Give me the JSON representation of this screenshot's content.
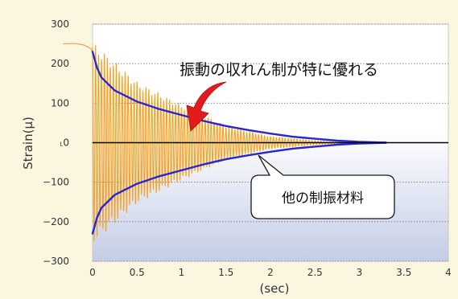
{
  "chart_data": {
    "type": "line",
    "title": "",
    "xlabel": "(sec)",
    "ylabel": "Strain(μ)",
    "xlim": [
      0,
      4
    ],
    "ylim": [
      -300,
      300
    ],
    "x_ticks": [
      "0",
      "0.5",
      "1",
      "1.5",
      "2",
      "2.5",
      "3",
      "3.5",
      "4"
    ],
    "y_ticks": [
      "300",
      "200",
      "100",
      "0",
      "−100",
      "−200",
      "−300"
    ],
    "y_zero_label": "˪0",
    "grid": true,
    "series": [
      {
        "color": "#f5a01f",
        "description": "orange damped vibration signal",
        "pre_trigger": {
          "x": [
            -0.33,
            -0.2,
            -0.1,
            -0.02,
            0.0
          ],
          "y": [
            250,
            249,
            245,
            238,
            230
          ]
        },
        "amplitude": {
          "x": [
            0,
            0.5,
            1,
            1.5,
            2,
            2.5,
            2.85
          ],
          "y": [
            240,
            145,
            90,
            40,
            15,
            5,
            0
          ]
        },
        "frequency_hz": 30
      },
      {
        "color": "#2626d2",
        "description": "blue upper envelope (other damping material)",
        "x": [
          0,
          0.05,
          0.1,
          0.25,
          0.5,
          0.75,
          1.0,
          1.25,
          1.5,
          1.75,
          2.0,
          2.25,
          2.5,
          2.75,
          3.0,
          3.3
        ],
        "y": [
          230,
          190,
          165,
          132,
          104,
          85,
          70,
          55,
          42,
          32,
          23,
          15,
          10,
          5,
          2,
          0
        ]
      },
      {
        "color": "#2626d2",
        "description": "blue lower envelope (other damping material)",
        "x": [
          0,
          0.05,
          0.1,
          0.25,
          0.5,
          0.75,
          1.0,
          1.25,
          1.5,
          1.75,
          2.0,
          2.25,
          2.5,
          2.75,
          3.0,
          3.3
        ],
        "y": [
          -230,
          -190,
          -165,
          -132,
          -104,
          -85,
          -70,
          -55,
          -42,
          -32,
          -23,
          -15,
          -10,
          -5,
          -2,
          0
        ]
      }
    ],
    "annotations": {
      "top": "振動の収れん制が特に優れる",
      "box": "他の制振材料"
    },
    "colors": {
      "background": "#fbf6df",
      "plot_top": "#ffffff",
      "plot_bottom": "#c4cde6",
      "arrow": "#e21c1c",
      "signal": "#f5a01f",
      "envelope": "#2626d2"
    }
  }
}
